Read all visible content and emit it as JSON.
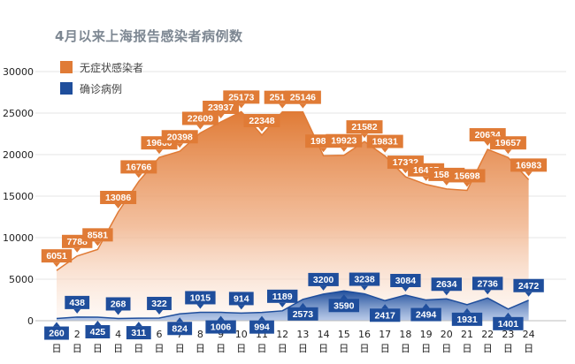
{
  "chart_data": {
    "type": "area",
    "title": "4月以来上海报告感染者病例数",
    "categories": [
      "1日",
      "2日",
      "3日",
      "4日",
      "5日",
      "6日",
      "7日",
      "8日",
      "9日",
      "10日",
      "11日",
      "12日",
      "13日",
      "14日",
      "15日",
      "16日",
      "17日",
      "18日",
      "19日",
      "20日",
      "21日",
      "22日",
      "23日",
      "24日"
    ],
    "x_tick_top": [
      "1",
      "2",
      "3",
      "4",
      "5",
      "6",
      "7",
      "8",
      "9",
      "10",
      "11",
      "12",
      "13",
      "14",
      "15",
      "16",
      "17",
      "18",
      "19",
      "20",
      "21",
      "22",
      "23",
      "24"
    ],
    "x_tick_bottom": "日",
    "series": [
      {
        "name": "无症状感染者",
        "color": "#e07b36",
        "values": [
          6051,
          7788,
          8581,
          13086,
          16766,
          19660,
          20398,
          22609,
          23937,
          25173,
          22348,
          25141,
          25146,
          19872,
          19923,
          21582,
          19831,
          17332,
          16407,
          15861,
          15698,
          20634,
          19657,
          16983
        ]
      },
      {
        "name": "确诊病例",
        "color": "#1f4e9c",
        "values": [
          260,
          438,
          425,
          268,
          311,
          322,
          824,
          1015,
          1006,
          914,
          994,
          1189,
          2573,
          3200,
          3590,
          3238,
          2417,
          3084,
          2494,
          2634,
          1931,
          2736,
          1401,
          2472
        ]
      }
    ],
    "ylim": [
      0,
      30000
    ],
    "yticks": [
      0,
      5000,
      10000,
      15000,
      20000,
      25000,
      30000
    ],
    "grid": true,
    "legend": "top-left"
  },
  "legend": {
    "asym": "无症状感染者",
    "conf": "确诊病例"
  },
  "colors": {
    "asym": "#e07b36",
    "conf": "#1f4e9c"
  }
}
